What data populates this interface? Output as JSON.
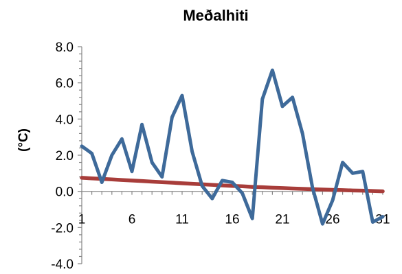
{
  "chart_data": {
    "type": "line",
    "title": "Meðalhiti",
    "xlabel": "",
    "ylabel": "(°C)",
    "ylim": [
      -4,
      8
    ],
    "ymajor_step": 2,
    "yminor_step": 0.4,
    "y_tick_labels": [
      "-4.0",
      "-2.0",
      "0.0",
      "2.0",
      "4.0",
      "6.0",
      "8.0"
    ],
    "x_tick_labels": [
      "1",
      "6",
      "11",
      "16",
      "21",
      "26",
      "31"
    ],
    "x": [
      1,
      2,
      3,
      4,
      5,
      6,
      7,
      8,
      9,
      10,
      11,
      12,
      13,
      14,
      15,
      16,
      17,
      18,
      19,
      20,
      21,
      22,
      23,
      24,
      25,
      26,
      27,
      28,
      29,
      30,
      31
    ],
    "grid": false,
    "legend": "none",
    "series": [
      {
        "color": "#3E6A9A",
        "values": [
          2.5,
          2.1,
          0.5,
          2.0,
          2.9,
          1.1,
          3.7,
          1.6,
          0.8,
          4.1,
          5.3,
          2.2,
          0.3,
          -0.4,
          0.6,
          0.5,
          -0.1,
          -1.5,
          5.1,
          6.7,
          4.7,
          5.2,
          3.2,
          0.2,
          -1.8,
          -0.5,
          1.6,
          1.0,
          1.1,
          -1.7,
          -1.4
        ]
      },
      {
        "color": "#A83D3A",
        "values": [
          0.75,
          0.72,
          0.69,
          0.66,
          0.63,
          0.6,
          0.57,
          0.54,
          0.51,
          0.48,
          0.45,
          0.42,
          0.39,
          0.36,
          0.33,
          0.3,
          0.28,
          0.25,
          0.23,
          0.2,
          0.18,
          0.16,
          0.14,
          0.12,
          0.1,
          0.08,
          0.07,
          0.05,
          0.04,
          0.02,
          0.0
        ]
      }
    ]
  }
}
